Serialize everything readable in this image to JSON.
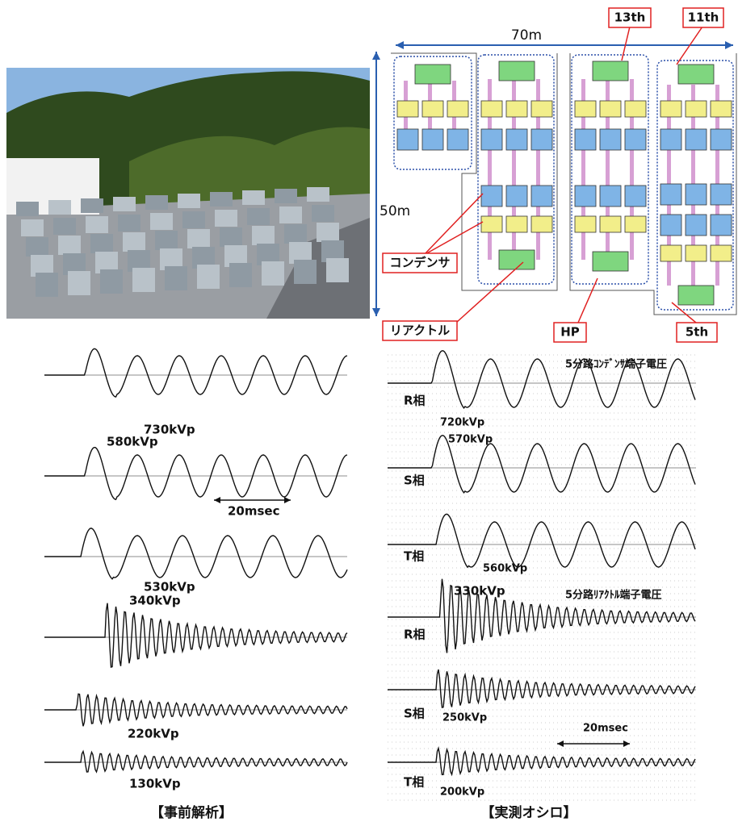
{
  "layout": {
    "width_label": "70m",
    "height_label": "50m",
    "callouts": [
      "13th",
      "11th",
      "5th",
      "HP",
      "コンデンサ",
      "リアクトル"
    ]
  },
  "analysis": {
    "labels": [
      "730kVp",
      "580kVp",
      "20msec",
      "530kVp",
      "340kVp",
      "220kVp",
      "130kVp"
    ],
    "caption": "【事前解析】"
  },
  "oscillo": {
    "labels": [
      "5分路ｺﾝﾃﾞﾝｻ端子電圧",
      "R相",
      "720kVp",
      "S相",
      "570kVp",
      "T相",
      "560kVp",
      "330kVp",
      "5分路ﾘｱｸﾄﾙ端子電圧",
      "R相",
      "S相",
      "250kVp",
      "20msec",
      "T相",
      "200kVp"
    ],
    "caption": "【実測オシロ】"
  }
}
